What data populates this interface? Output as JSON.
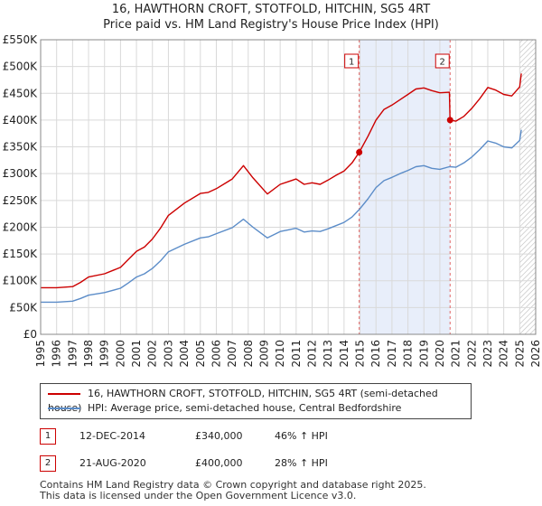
{
  "header": {
    "title": "16, HAWTHORN CROFT, STOTFOLD, HITCHIN, SG5 4RT",
    "subtitle": "Price paid vs. HM Land Registry's House Price Index (HPI)"
  },
  "chart_data": {
    "type": "line",
    "title": "16, HAWTHORN CROFT, STOTFOLD, HITCHIN, SG5 4RT",
    "subtitle": "Price paid vs. HM Land Registry's House Price Index (HPI)",
    "xlabel": "",
    "ylabel": "",
    "xlim": [
      1995,
      2026
    ],
    "ylim": [
      0,
      550000
    ],
    "y_ticks": [
      {
        "value": 0,
        "label": "£0"
      },
      {
        "value": 50000,
        "label": "£50K"
      },
      {
        "value": 100000,
        "label": "£100K"
      },
      {
        "value": 150000,
        "label": "£150K"
      },
      {
        "value": 200000,
        "label": "£200K"
      },
      {
        "value": 250000,
        "label": "£250K"
      },
      {
        "value": 300000,
        "label": "£300K"
      },
      {
        "value": 350000,
        "label": "£350K"
      },
      {
        "value": 400000,
        "label": "£400K"
      },
      {
        "value": 450000,
        "label": "£450K"
      },
      {
        "value": 500000,
        "label": "£500K"
      },
      {
        "value": 550000,
        "label": "£550K"
      }
    ],
    "x_ticks": [
      "1995",
      "1996",
      "1997",
      "1998",
      "1999",
      "2000",
      "2001",
      "2002",
      "2003",
      "2004",
      "2005",
      "2006",
      "2007",
      "2008",
      "2009",
      "2010",
      "2011",
      "2012",
      "2013",
      "2014",
      "2015",
      "2016",
      "2017",
      "2018",
      "2019",
      "2020",
      "2021",
      "2022",
      "2023",
      "2024",
      "2025",
      "2026"
    ],
    "grid": true,
    "shaded_period": {
      "from": 2014.95,
      "to": 2020.64
    },
    "hatched_from": 2025.0,
    "series": [
      {
        "name": "16, HAWTHORN CROFT, STOTFOLD, HITCHIN, SG5 4RT (semi-detached house)",
        "color": "#cc0000",
        "x": [
          1995,
          1996,
          1997,
          1997.5,
          1998,
          1999,
          2000,
          2000.5,
          2001,
          2001.5,
          2002,
          2002.5,
          2003,
          2004,
          2005,
          2005.5,
          2006,
          2007,
          2007.7,
          2008.3,
          2009.2,
          2010,
          2010.5,
          2011,
          2011.5,
          2012,
          2012.5,
          2013,
          2013.5,
          2014,
          2014.5,
          2014.95,
          2015.5,
          2016,
          2016.5,
          2017,
          2017.5,
          2018,
          2018.5,
          2019,
          2019.5,
          2020,
          2020.6,
          2020.64,
          2021,
          2021.5,
          2022,
          2022.5,
          2023,
          2023.5,
          2024,
          2024.5,
          2025,
          2025.1
        ],
        "values": [
          87000,
          87000,
          89000,
          97000,
          107000,
          113000,
          125000,
          140000,
          155000,
          163000,
          178000,
          198000,
          222000,
          245000,
          263000,
          265000,
          272000,
          290000,
          315000,
          292000,
          262000,
          280000,
          285000,
          290000,
          280000,
          283000,
          280000,
          288000,
          297000,
          305000,
          320000,
          340000,
          370000,
          400000,
          420000,
          428000,
          438000,
          448000,
          458000,
          460000,
          455000,
          451000,
          452000,
          400000,
          398000,
          407000,
          422000,
          440000,
          461000,
          456000,
          448000,
          445000,
          462000,
          487000
        ]
      },
      {
        "name": "HPI: Average price, semi-detached house, Central Bedfordshire",
        "color": "#5b8cc8",
        "x": [
          1995,
          1996,
          1997,
          1997.5,
          1998,
          1999,
          2000,
          2000.5,
          2001,
          2001.5,
          2002,
          2002.5,
          2003,
          2004,
          2005,
          2005.5,
          2006,
          2007,
          2007.7,
          2008.3,
          2009.2,
          2010,
          2010.5,
          2011,
          2011.5,
          2012,
          2012.5,
          2013,
          2013.5,
          2014,
          2014.5,
          2014.95,
          2015.5,
          2016,
          2016.5,
          2017,
          2017.5,
          2018,
          2018.5,
          2019,
          2019.5,
          2020,
          2020.6,
          2020.64,
          2021,
          2021.5,
          2022,
          2022.5,
          2023,
          2023.5,
          2024,
          2024.5,
          2025,
          2025.1
        ],
        "values": [
          60000,
          60000,
          62000,
          67000,
          73000,
          78000,
          86000,
          96000,
          107000,
          113000,
          123000,
          137000,
          154000,
          168000,
          180000,
          182000,
          188000,
          199000,
          215000,
          200000,
          180000,
          192000,
          195000,
          198000,
          191000,
          193000,
          192000,
          197000,
          203000,
          209000,
          219000,
          233000,
          253000,
          274000,
          287000,
          293000,
          300000,
          306000,
          313000,
          315000,
          310000,
          308000,
          313000,
          313000,
          312000,
          320000,
          331000,
          345000,
          361000,
          357000,
          350000,
          348000,
          362000,
          382000
        ]
      }
    ],
    "annotations": [
      {
        "label": "1",
        "x": 2014.95,
        "value": 340000
      },
      {
        "label": "2",
        "x": 2020.64,
        "value": 400000
      }
    ]
  },
  "legend": {
    "items": [
      {
        "label": "16, HAWTHORN CROFT, STOTFOLD, HITCHIN, SG5 4RT (semi-detached house)",
        "color": "#cc0000"
      },
      {
        "label": "HPI: Average price, semi-detached house, Central Bedfordshire",
        "color": "#5b8cc8"
      }
    ]
  },
  "sales": [
    {
      "num": "1",
      "date": "12-DEC-2014",
      "price": "£340,000",
      "hpi": "46% ↑ HPI"
    },
    {
      "num": "2",
      "date": "21-AUG-2020",
      "price": "£400,000",
      "hpi": "28% ↑ HPI"
    }
  ],
  "footer": {
    "line1": "Contains HM Land Registry data © Crown copyright and database right 2025.",
    "line2": "This data is licensed under the Open Government Licence v3.0."
  }
}
